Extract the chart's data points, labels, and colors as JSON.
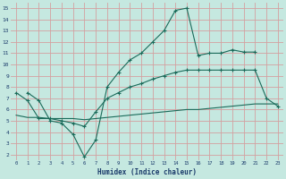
{
  "xlabel": "Humidex (Indice chaleur)",
  "bg_color": "#c5e8e0",
  "grid_color": "#d4a0a0",
  "line_color": "#1a6b5a",
  "xlim": [
    -0.5,
    23.5
  ],
  "ylim": [
    1.5,
    15.5
  ],
  "xticks": [
    0,
    1,
    2,
    3,
    4,
    5,
    6,
    7,
    8,
    9,
    10,
    11,
    12,
    13,
    14,
    15,
    16,
    17,
    18,
    19,
    20,
    21,
    22,
    23
  ],
  "yticks": [
    2,
    3,
    4,
    5,
    6,
    7,
    8,
    9,
    10,
    11,
    12,
    13,
    14,
    15
  ],
  "curve1_x": [
    1,
    2,
    3,
    4,
    5,
    6,
    7,
    8,
    9,
    10,
    11,
    12,
    13,
    14,
    15,
    16,
    17,
    18,
    19,
    20,
    21
  ],
  "curve1_y": [
    7.5,
    6.8,
    5.0,
    4.8,
    3.8,
    1.8,
    3.3,
    8.0,
    9.3,
    10.4,
    11.0,
    12.0,
    13.0,
    14.8,
    15.0,
    10.8,
    11.0,
    11.0,
    11.3,
    11.1,
    11.1
  ],
  "curve2_x": [
    0,
    1,
    2,
    3,
    4,
    5,
    6,
    7,
    8,
    9,
    10,
    11,
    12,
    13,
    14,
    15,
    16,
    17,
    18,
    19,
    20,
    21,
    22,
    23
  ],
  "curve2_y": [
    7.5,
    6.8,
    5.2,
    5.2,
    5.0,
    4.8,
    4.5,
    5.8,
    7.0,
    7.5,
    8.0,
    8.3,
    8.7,
    9.0,
    9.3,
    9.5,
    9.5,
    9.5,
    9.5,
    9.5,
    9.5,
    9.5,
    7.0,
    6.3
  ],
  "curve3_x": [
    0,
    1,
    2,
    3,
    4,
    5,
    6,
    7,
    8,
    9,
    10,
    11,
    12,
    13,
    14,
    15,
    16,
    17,
    18,
    19,
    20,
    21,
    22,
    23
  ],
  "curve3_y": [
    5.5,
    5.3,
    5.3,
    5.2,
    5.2,
    5.2,
    5.1,
    5.2,
    5.3,
    5.4,
    5.5,
    5.6,
    5.7,
    5.8,
    5.9,
    6.0,
    6.0,
    6.1,
    6.2,
    6.3,
    6.4,
    6.5,
    6.5,
    6.5
  ]
}
